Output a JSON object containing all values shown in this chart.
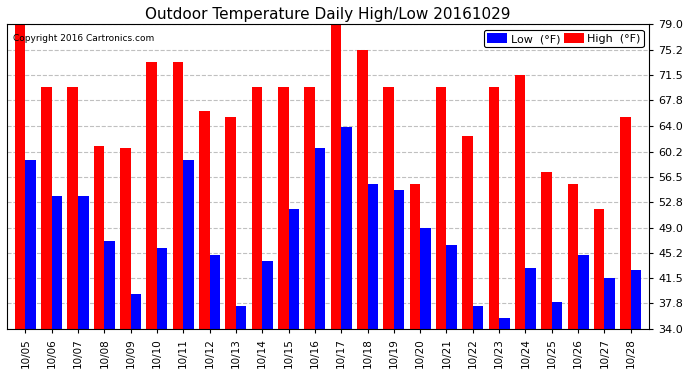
{
  "title": "Outdoor Temperature Daily High/Low 20161029",
  "copyright": "Copyright 2016 Cartronics.com",
  "dates": [
    "10/05",
    "10/06",
    "10/07",
    "10/08",
    "10/09",
    "10/10",
    "10/11",
    "10/12",
    "10/13",
    "10/14",
    "10/15",
    "10/16",
    "10/17",
    "10/18",
    "10/19",
    "10/20",
    "10/21",
    "10/22",
    "10/23",
    "10/24",
    "10/25",
    "10/26",
    "10/27",
    "10/28"
  ],
  "high": [
    79.0,
    69.8,
    69.8,
    61.0,
    60.8,
    73.4,
    73.4,
    66.2,
    65.3,
    69.8,
    69.8,
    69.8,
    79.4,
    75.2,
    69.8,
    55.4,
    69.8,
    62.6,
    69.8,
    71.6,
    57.2,
    55.4,
    51.8,
    65.3
  ],
  "low": [
    59.0,
    53.6,
    53.6,
    47.0,
    39.2,
    46.0,
    59.0,
    45.0,
    37.4,
    44.0,
    51.8,
    60.8,
    63.8,
    55.4,
    54.5,
    49.0,
    46.4,
    37.4,
    35.6,
    43.0,
    38.0,
    45.0,
    41.5,
    42.8
  ],
  "ylim_min": 34.0,
  "ylim_max": 79.0,
  "yticks": [
    34.0,
    37.8,
    41.5,
    45.2,
    49.0,
    52.8,
    56.5,
    60.2,
    64.0,
    67.8,
    71.5,
    75.2,
    79.0
  ],
  "bar_width": 0.4,
  "high_color": "#FF0000",
  "low_color": "#0000FF",
  "bg_color": "#FFFFFF",
  "grid_color": "#C0C0C0",
  "title_fontsize": 11,
  "legend_low_label": "Low  (°F)",
  "legend_high_label": "High  (°F)"
}
